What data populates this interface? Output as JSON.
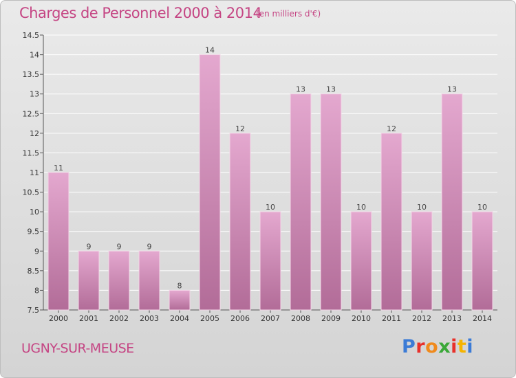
{
  "header": {
    "title": "Charges de Personnel 2000 à 2014",
    "unit": "(en milliers d'€)"
  },
  "footer": {
    "town": "UGNY-SUR-MEUSE",
    "logo_text": "Proxiti",
    "logo_colors": [
      "#3b7bd6",
      "#e8302a",
      "#f08a1c",
      "#3aa838",
      "#e8302a",
      "#f5b400",
      "#3b7bd6"
    ]
  },
  "colors": {
    "title": "#c54684",
    "bar_top": "#e4a8cf",
    "bar_bottom": "#b26c98"
  },
  "chart_data": {
    "type": "bar",
    "categories": [
      "2000",
      "2001",
      "2002",
      "2003",
      "2004",
      "2005",
      "2006",
      "2007",
      "2008",
      "2009",
      "2010",
      "2011",
      "2012",
      "2013",
      "2014"
    ],
    "values": [
      11,
      9,
      9,
      9,
      8,
      14,
      12,
      10,
      13,
      13,
      10,
      12,
      10,
      13,
      10
    ],
    "value_labels": [
      "11",
      "9",
      "9",
      "9",
      "8",
      "14",
      "12",
      "10",
      "13",
      "13",
      "10",
      "12",
      "10",
      "13",
      "10"
    ],
    "yticks": [
      "7.5",
      "8",
      "8.5",
      "9",
      "9.5",
      "10",
      "10.5",
      "11",
      "11.5",
      "12",
      "12.5",
      "13",
      "13.5",
      "14",
      "14.5"
    ],
    "ylim": [
      7.5,
      14.5
    ],
    "grid": true,
    "title": "Charges de Personnel 2000 à 2014",
    "xlabel": "",
    "ylabel": "(en milliers d'€)"
  }
}
